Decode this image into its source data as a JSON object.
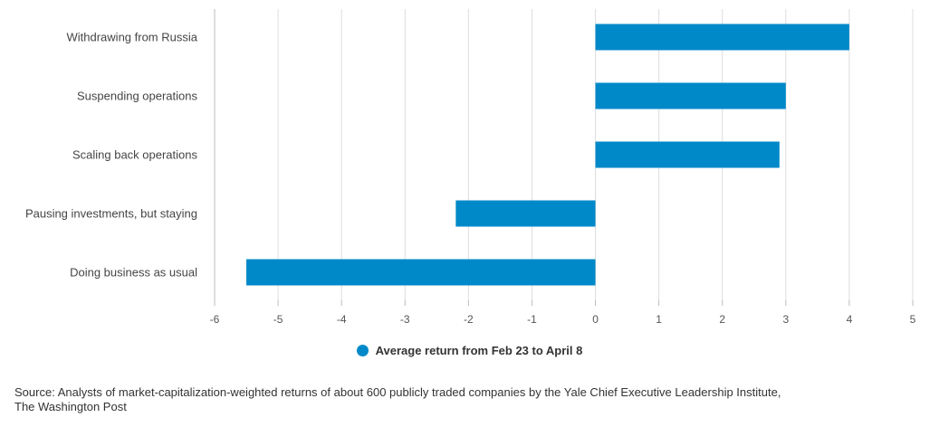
{
  "chart_data": {
    "type": "bar",
    "orientation": "horizontal",
    "categories": [
      "Withdrawing from Russia",
      "Suspending operations",
      "Scaling back operations",
      "Pausing investments, but staying",
      "Doing business as usual"
    ],
    "series": [
      {
        "name": "Average return from Feb 23 to April 8",
        "values": [
          4.0,
          3.0,
          2.9,
          -2.2,
          -5.5
        ],
        "color": "#0089c9"
      }
    ],
    "xlim": [
      -6,
      5
    ],
    "xticks": [
      -6,
      -5,
      -4,
      -3,
      -2,
      -1,
      0,
      1,
      2,
      3,
      4,
      5
    ],
    "grid": "vertical",
    "legend_position": "bottom"
  },
  "legend": {
    "label": "Average return from Feb 23 to April 8",
    "color": "#0089c9"
  },
  "source": {
    "line1": "Source: Analysts of market-capitalization-weighted returns of about 600 publicly traded companies by the Yale Chief Executive Leadership Institute,",
    "line2": "The Washington Post"
  }
}
